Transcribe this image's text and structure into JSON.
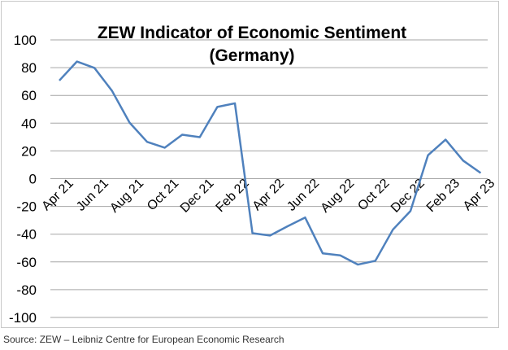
{
  "chart_data": {
    "type": "line",
    "title": "ZEW Indicator of Economic Sentiment",
    "subtitle": "(Germany)",
    "xlabel": "",
    "ylabel": "",
    "ylim": [
      -100,
      100
    ],
    "yticks": [
      100,
      80,
      60,
      40,
      20,
      0,
      -20,
      -40,
      -60,
      -80,
      -100
    ],
    "grid": true,
    "line_color": "#4f81bd",
    "x": [
      "Apr 21",
      "May 21",
      "Jun 21",
      "Jul 21",
      "Aug 21",
      "Sep 21",
      "Oct 21",
      "Nov 21",
      "Dec 21",
      "Jan 22",
      "Feb 22",
      "Mar 22",
      "Apr 22",
      "May 22",
      "Jun 22",
      "Jul 22",
      "Aug 22",
      "Sep 22",
      "Oct 22",
      "Nov 22",
      "Dec 22",
      "Jan 23",
      "Feb 23",
      "Mar 23",
      "Apr 23"
    ],
    "xtick_labels": [
      "Apr 21",
      "Jun 21",
      "Aug 21",
      "Oct 21",
      "Dec 21",
      "Feb 22",
      "Apr 22",
      "Jun 22",
      "Aug 22",
      "Oct 22",
      "Dec 22",
      "Feb 23",
      "Apr 23"
    ],
    "values": [
      70.7,
      84.4,
      79.8,
      63.3,
      40.4,
      26.5,
      22.3,
      31.7,
      29.9,
      51.7,
      54.3,
      -39.3,
      -41.0,
      -34.3,
      -28.0,
      -53.8,
      -55.3,
      -61.9,
      -59.2,
      -36.7,
      -23.3,
      16.9,
      28.1,
      13.0,
      4.1
    ]
  },
  "source": "Source: ZEW – Leibniz Centre for European Economic Research"
}
